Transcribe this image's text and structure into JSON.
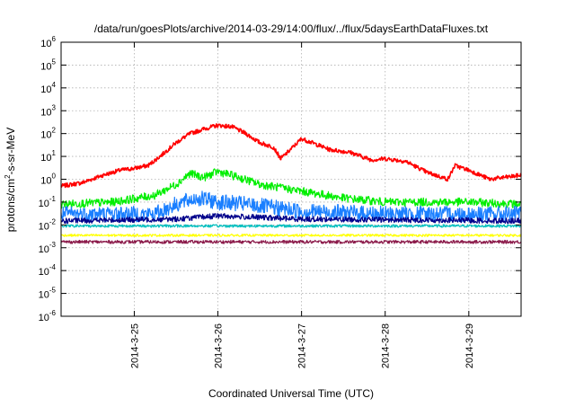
{
  "chart_data": {
    "type": "line",
    "title": "/data/run/goesPlots/archive/2014-03-29/14:00/flux/../flux/5daysEarthDataFluxes.txt",
    "xlabel": "Coordinated Universal Time (UTC)",
    "ylabel_parts": [
      "protons/cm",
      "2",
      "-s-sr-MeV"
    ],
    "y_scale": "log",
    "ylim": [
      1e-06,
      1000000.0
    ],
    "xlim": [
      "2014-03-24 03:00",
      "2014-03-29 15:00"
    ],
    "x_ticks": [
      {
        "label": "2014-3-25",
        "value": "2014-03-25 00:00"
      },
      {
        "label": "2014-3-26",
        "value": "2014-03-26 00:00"
      },
      {
        "label": "2014-3-27",
        "value": "2014-03-27 00:00"
      },
      {
        "label": "2014-3-28",
        "value": "2014-03-28 00:00"
      },
      {
        "label": "2014-3-29",
        "value": "2014-03-29 00:00"
      }
    ],
    "y_ticks": [
      {
        "base": "10",
        "exp": "-6",
        "value": 1e-06
      },
      {
        "base": "10",
        "exp": "-5",
        "value": 1e-05
      },
      {
        "base": "10",
        "exp": "-4",
        "value": 0.0001
      },
      {
        "base": "10",
        "exp": "-3",
        "value": 0.001
      },
      {
        "base": "10",
        "exp": "-2",
        "value": 0.01
      },
      {
        "base": "10",
        "exp": "-1",
        "value": 0.1
      },
      {
        "base": "10",
        "exp": "0",
        "value": 1
      },
      {
        "base": "10",
        "exp": "1",
        "value": 10
      },
      {
        "base": "10",
        "exp": "2",
        "value": 100
      },
      {
        "base": "10",
        "exp": "3",
        "value": 1000
      },
      {
        "base": "10",
        "exp": "4",
        "value": 10000
      },
      {
        "base": "10",
        "exp": "5",
        "value": 100000
      },
      {
        "base": "10",
        "exp": "6",
        "value": 1000000
      }
    ],
    "grid": true,
    "series": [
      {
        "color": "#ff0000",
        "noise": 0.09,
        "points": [
          [
            "2014-03-24 03:00",
            0.5
          ],
          [
            "2014-03-24 09:00",
            0.7
          ],
          [
            "2014-03-24 15:00",
            1.5
          ],
          [
            "2014-03-24 20:00",
            2.5
          ],
          [
            "2014-03-25 00:00",
            3
          ],
          [
            "2014-03-25 04:00",
            4
          ],
          [
            "2014-03-25 08:00",
            12
          ],
          [
            "2014-03-25 12:00",
            40
          ],
          [
            "2014-03-25 16:00",
            100
          ],
          [
            "2014-03-25 20:00",
            160
          ],
          [
            "2014-03-26 00:00",
            230
          ],
          [
            "2014-03-26 04:00",
            200
          ],
          [
            "2014-03-26 08:00",
            100
          ],
          [
            "2014-03-26 12:00",
            40
          ],
          [
            "2014-03-26 16:00",
            25
          ],
          [
            "2014-03-26 18:00",
            8
          ],
          [
            "2014-03-26 20:00",
            15
          ],
          [
            "2014-03-27 00:00",
            60
          ],
          [
            "2014-03-27 04:00",
            35
          ],
          [
            "2014-03-27 08:00",
            20
          ],
          [
            "2014-03-27 14:00",
            15
          ],
          [
            "2014-03-27 20:00",
            7
          ],
          [
            "2014-03-28 00:00",
            8
          ],
          [
            "2014-03-28 06:00",
            6
          ],
          [
            "2014-03-28 12:00",
            2
          ],
          [
            "2014-03-28 18:00",
            1
          ],
          [
            "2014-03-28 20:00",
            4
          ],
          [
            "2014-03-29 00:00",
            2.5
          ],
          [
            "2014-03-29 06:00",
            1
          ],
          [
            "2014-03-29 15:00",
            1.5
          ]
        ]
      },
      {
        "color": "#00ee00",
        "noise": 0.18,
        "points": [
          [
            "2014-03-24 03:00",
            0.08
          ],
          [
            "2014-03-24 18:00",
            0.1
          ],
          [
            "2014-03-25 06:00",
            0.2
          ],
          [
            "2014-03-25 12:00",
            0.6
          ],
          [
            "2014-03-25 16:00",
            1.8
          ],
          [
            "2014-03-25 20:00",
            1.2
          ],
          [
            "2014-03-26 00:00",
            2.2
          ],
          [
            "2014-03-26 06:00",
            1.2
          ],
          [
            "2014-03-26 12:00",
            0.6
          ],
          [
            "2014-03-27 00:00",
            0.3
          ],
          [
            "2014-03-27 12:00",
            0.15
          ],
          [
            "2014-03-28 00:00",
            0.1
          ],
          [
            "2014-03-29 00:00",
            0.1
          ],
          [
            "2014-03-29 15:00",
            0.08
          ]
        ]
      },
      {
        "color": "#1a7fff",
        "noise": 0.35,
        "points": [
          [
            "2014-03-24 03:00",
            0.03
          ],
          [
            "2014-03-25 06:00",
            0.03
          ],
          [
            "2014-03-25 12:00",
            0.08
          ],
          [
            "2014-03-25 18:00",
            0.15
          ],
          [
            "2014-03-26 00:00",
            0.1
          ],
          [
            "2014-03-26 08:00",
            0.08
          ],
          [
            "2014-03-27 00:00",
            0.04
          ],
          [
            "2014-03-28 00:00",
            0.03
          ],
          [
            "2014-03-29 15:00",
            0.03
          ]
        ]
      },
      {
        "color": "#00008b",
        "noise": 0.12,
        "points": [
          [
            "2014-03-24 03:00",
            0.015
          ],
          [
            "2014-03-25 12:00",
            0.018
          ],
          [
            "2014-03-26 00:00",
            0.025
          ],
          [
            "2014-03-27 00:00",
            0.018
          ],
          [
            "2014-03-29 15:00",
            0.015
          ]
        ]
      },
      {
        "color": "#00bfbf",
        "noise": 0.06,
        "points": [
          [
            "2014-03-24 03:00",
            0.009
          ],
          [
            "2014-03-29 15:00",
            0.009
          ]
        ]
      },
      {
        "color": "#ffff00",
        "noise": 0.05,
        "points": [
          [
            "2014-03-24 03:00",
            0.0035
          ],
          [
            "2014-03-29 15:00",
            0.0035
          ]
        ]
      },
      {
        "color": "#8b1a4a",
        "noise": 0.07,
        "points": [
          [
            "2014-03-24 03:00",
            0.0018
          ],
          [
            "2014-03-29 15:00",
            0.0018
          ]
        ]
      }
    ]
  }
}
